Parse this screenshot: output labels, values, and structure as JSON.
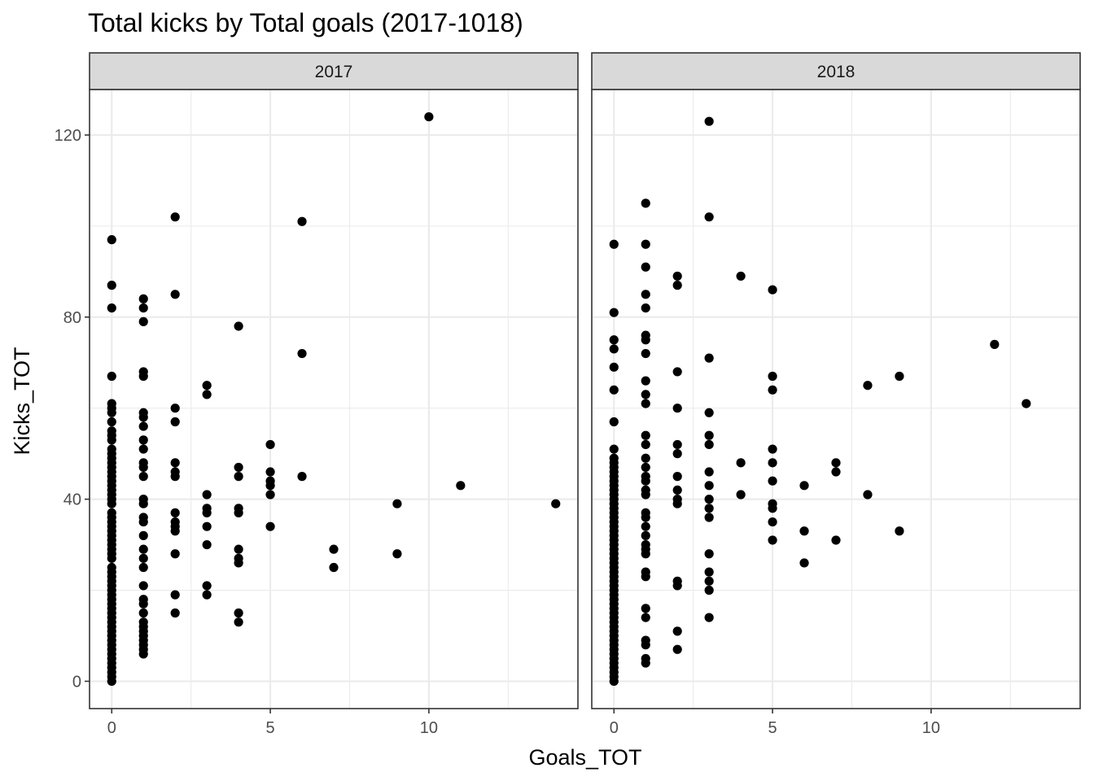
{
  "chart_data": {
    "type": "scatter",
    "title": "Total kicks by Total goals (2017-1018)",
    "xlabel": "Goals_TOT",
    "ylabel": "Kicks_TOT",
    "xlim": [
      -0.7,
      14.7
    ],
    "ylim": [
      -6,
      130
    ],
    "x_ticks": [
      0,
      5,
      10
    ],
    "y_ticks": [
      0,
      40,
      80,
      120
    ],
    "grid": true,
    "point_color": "#000000",
    "panels": [
      {
        "label": "2017",
        "points": [
          [
            0,
            97
          ],
          [
            0,
            87
          ],
          [
            0,
            82
          ],
          [
            0,
            67
          ],
          [
            0,
            61
          ],
          [
            0,
            60
          ],
          [
            0,
            59
          ],
          [
            0,
            57
          ],
          [
            0,
            55
          ],
          [
            0,
            54
          ],
          [
            0,
            53
          ],
          [
            0,
            51
          ],
          [
            0,
            50
          ],
          [
            0,
            49
          ],
          [
            0,
            48
          ],
          [
            0,
            47
          ],
          [
            0,
            46
          ],
          [
            0,
            45
          ],
          [
            0,
            44
          ],
          [
            0,
            43
          ],
          [
            0,
            42
          ],
          [
            0,
            41
          ],
          [
            0,
            40
          ],
          [
            0,
            39
          ],
          [
            0,
            37
          ],
          [
            0,
            36
          ],
          [
            0,
            35
          ],
          [
            0,
            34
          ],
          [
            0,
            33
          ],
          [
            0,
            32
          ],
          [
            0,
            31
          ],
          [
            0,
            30
          ],
          [
            0,
            29
          ],
          [
            0,
            28
          ],
          [
            0,
            27
          ],
          [
            0,
            25
          ],
          [
            0,
            24
          ],
          [
            0,
            23
          ],
          [
            0,
            22
          ],
          [
            0,
            21
          ],
          [
            0,
            20
          ],
          [
            0,
            19
          ],
          [
            0,
            18
          ],
          [
            0,
            17
          ],
          [
            0,
            16
          ],
          [
            0,
            15
          ],
          [
            0,
            14
          ],
          [
            0,
            13
          ],
          [
            0,
            12
          ],
          [
            0,
            11
          ],
          [
            0,
            10
          ],
          [
            0,
            9
          ],
          [
            0,
            8
          ],
          [
            0,
            7
          ],
          [
            0,
            6
          ],
          [
            0,
            5
          ],
          [
            0,
            4
          ],
          [
            0,
            3
          ],
          [
            0,
            2
          ],
          [
            0,
            1
          ],
          [
            0,
            0
          ],
          [
            1,
            84
          ],
          [
            1,
            82
          ],
          [
            1,
            79
          ],
          [
            1,
            68
          ],
          [
            1,
            67
          ],
          [
            1,
            59
          ],
          [
            1,
            58
          ],
          [
            1,
            56
          ],
          [
            1,
            53
          ],
          [
            1,
            51
          ],
          [
            1,
            48
          ],
          [
            1,
            47
          ],
          [
            1,
            45
          ],
          [
            1,
            40
          ],
          [
            1,
            39
          ],
          [
            1,
            36
          ],
          [
            1,
            35
          ],
          [
            1,
            32
          ],
          [
            1,
            29
          ],
          [
            1,
            27
          ],
          [
            1,
            25
          ],
          [
            1,
            21
          ],
          [
            1,
            18
          ],
          [
            1,
            17
          ],
          [
            1,
            15
          ],
          [
            1,
            13
          ],
          [
            1,
            12
          ],
          [
            1,
            11
          ],
          [
            1,
            10
          ],
          [
            1,
            9
          ],
          [
            1,
            8
          ],
          [
            1,
            7
          ],
          [
            1,
            6
          ],
          [
            2,
            102
          ],
          [
            2,
            85
          ],
          [
            2,
            60
          ],
          [
            2,
            57
          ],
          [
            2,
            48
          ],
          [
            2,
            46
          ],
          [
            2,
            45
          ],
          [
            2,
            37
          ],
          [
            2,
            35
          ],
          [
            2,
            34
          ],
          [
            2,
            33
          ],
          [
            2,
            28
          ],
          [
            2,
            19
          ],
          [
            2,
            15
          ],
          [
            3,
            65
          ],
          [
            3,
            63
          ],
          [
            3,
            41
          ],
          [
            3,
            38
          ],
          [
            3,
            37
          ],
          [
            3,
            34
          ],
          [
            3,
            30
          ],
          [
            3,
            21
          ],
          [
            3,
            19
          ],
          [
            4,
            78
          ],
          [
            4,
            47
          ],
          [
            4,
            45
          ],
          [
            4,
            38
          ],
          [
            4,
            37
          ],
          [
            4,
            29
          ],
          [
            4,
            27
          ],
          [
            4,
            26
          ],
          [
            4,
            15
          ],
          [
            4,
            13
          ],
          [
            5,
            52
          ],
          [
            5,
            46
          ],
          [
            5,
            44
          ],
          [
            5,
            43
          ],
          [
            5,
            41
          ],
          [
            5,
            34
          ],
          [
            6,
            101
          ],
          [
            6,
            72
          ],
          [
            6,
            45
          ],
          [
            7,
            29
          ],
          [
            7,
            25
          ],
          [
            9,
            39
          ],
          [
            9,
            28
          ],
          [
            10,
            124
          ],
          [
            11,
            43
          ],
          [
            14,
            39
          ]
        ]
      },
      {
        "label": "2018",
        "points": [
          [
            0,
            96
          ],
          [
            0,
            81
          ],
          [
            0,
            75
          ],
          [
            0,
            73
          ],
          [
            0,
            69
          ],
          [
            0,
            64
          ],
          [
            0,
            57
          ],
          [
            0,
            51
          ],
          [
            0,
            49
          ],
          [
            0,
            48
          ],
          [
            0,
            47
          ],
          [
            0,
            46
          ],
          [
            0,
            45
          ],
          [
            0,
            44
          ],
          [
            0,
            43
          ],
          [
            0,
            42
          ],
          [
            0,
            41
          ],
          [
            0,
            40
          ],
          [
            0,
            39
          ],
          [
            0,
            38
          ],
          [
            0,
            37
          ],
          [
            0,
            36
          ],
          [
            0,
            35
          ],
          [
            0,
            34
          ],
          [
            0,
            33
          ],
          [
            0,
            32
          ],
          [
            0,
            31
          ],
          [
            0,
            30
          ],
          [
            0,
            29
          ],
          [
            0,
            28
          ],
          [
            0,
            27
          ],
          [
            0,
            26
          ],
          [
            0,
            25
          ],
          [
            0,
            24
          ],
          [
            0,
            23
          ],
          [
            0,
            22
          ],
          [
            0,
            21
          ],
          [
            0,
            20
          ],
          [
            0,
            19
          ],
          [
            0,
            18
          ],
          [
            0,
            17
          ],
          [
            0,
            16
          ],
          [
            0,
            15
          ],
          [
            0,
            14
          ],
          [
            0,
            13
          ],
          [
            0,
            12
          ],
          [
            0,
            11
          ],
          [
            0,
            10
          ],
          [
            0,
            9
          ],
          [
            0,
            8
          ],
          [
            0,
            7
          ],
          [
            0,
            6
          ],
          [
            0,
            5
          ],
          [
            0,
            4
          ],
          [
            0,
            3
          ],
          [
            0,
            2
          ],
          [
            0,
            1
          ],
          [
            0,
            0
          ],
          [
            1,
            105
          ],
          [
            1,
            96
          ],
          [
            1,
            91
          ],
          [
            1,
            85
          ],
          [
            1,
            82
          ],
          [
            1,
            76
          ],
          [
            1,
            75
          ],
          [
            1,
            72
          ],
          [
            1,
            66
          ],
          [
            1,
            63
          ],
          [
            1,
            61
          ],
          [
            1,
            54
          ],
          [
            1,
            52
          ],
          [
            1,
            49
          ],
          [
            1,
            47
          ],
          [
            1,
            45
          ],
          [
            1,
            44
          ],
          [
            1,
            42
          ],
          [
            1,
            41
          ],
          [
            1,
            37
          ],
          [
            1,
            36
          ],
          [
            1,
            34
          ],
          [
            1,
            32
          ],
          [
            1,
            30
          ],
          [
            1,
            29
          ],
          [
            1,
            28
          ],
          [
            1,
            24
          ],
          [
            1,
            23
          ],
          [
            1,
            16
          ],
          [
            1,
            14
          ],
          [
            1,
            9
          ],
          [
            1,
            8
          ],
          [
            1,
            5
          ],
          [
            1,
            4
          ],
          [
            2,
            89
          ],
          [
            2,
            87
          ],
          [
            2,
            68
          ],
          [
            2,
            60
          ],
          [
            2,
            52
          ],
          [
            2,
            50
          ],
          [
            2,
            45
          ],
          [
            2,
            42
          ],
          [
            2,
            40
          ],
          [
            2,
            39
          ],
          [
            2,
            22
          ],
          [
            2,
            21
          ],
          [
            2,
            11
          ],
          [
            2,
            7
          ],
          [
            3,
            123
          ],
          [
            3,
            102
          ],
          [
            3,
            71
          ],
          [
            3,
            59
          ],
          [
            3,
            54
          ],
          [
            3,
            52
          ],
          [
            3,
            46
          ],
          [
            3,
            43
          ],
          [
            3,
            40
          ],
          [
            3,
            38
          ],
          [
            3,
            36
          ],
          [
            3,
            28
          ],
          [
            3,
            24
          ],
          [
            3,
            22
          ],
          [
            3,
            20
          ],
          [
            3,
            14
          ],
          [
            4,
            89
          ],
          [
            4,
            48
          ],
          [
            4,
            41
          ],
          [
            5,
            86
          ],
          [
            5,
            67
          ],
          [
            5,
            64
          ],
          [
            5,
            51
          ],
          [
            5,
            48
          ],
          [
            5,
            44
          ],
          [
            5,
            39
          ],
          [
            5,
            38
          ],
          [
            5,
            35
          ],
          [
            5,
            31
          ],
          [
            6,
            43
          ],
          [
            6,
            33
          ],
          [
            6,
            26
          ],
          [
            7,
            48
          ],
          [
            7,
            46
          ],
          [
            7,
            31
          ],
          [
            8,
            65
          ],
          [
            8,
            41
          ],
          [
            9,
            67
          ],
          [
            9,
            33
          ],
          [
            12,
            74
          ],
          [
            13,
            61
          ]
        ]
      }
    ]
  }
}
